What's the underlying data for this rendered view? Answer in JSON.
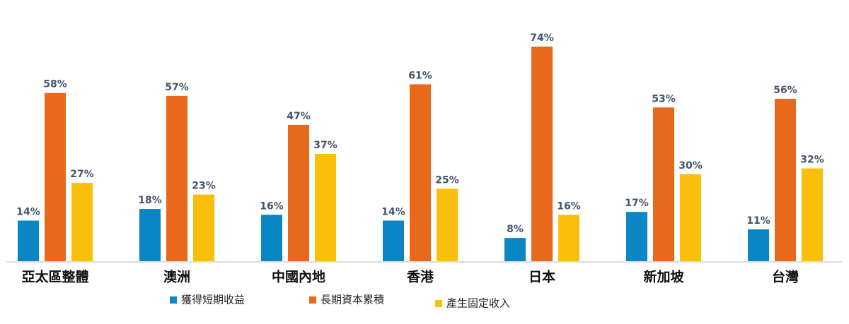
{
  "chart_data": {
    "type": "bar",
    "categories": [
      "亞太區整體",
      "澳洲",
      "中國內地",
      "香港",
      "日本",
      "新加坡",
      "台灣"
    ],
    "series": [
      {
        "name": "獲得短期收益",
        "color": "#0a86c4",
        "values": [
          14,
          18,
          16,
          14,
          8,
          17,
          11
        ],
        "value_labels": [
          "14%",
          "18%",
          "16%",
          "14%",
          "8%",
          "17%",
          "11%"
        ]
      },
      {
        "name": "長期資本累積",
        "color": "#e8681c",
        "values": [
          58,
          57,
          47,
          61,
          74,
          53,
          56
        ],
        "value_labels": [
          "58%",
          "57%",
          "47%",
          "61%",
          "74%",
          "53%",
          "56%"
        ]
      },
      {
        "name": "產生固定收入",
        "color": "#fbbf0b",
        "values": [
          27,
          23,
          37,
          25,
          16,
          30,
          32
        ],
        "value_labels": [
          "27%",
          "23%",
          "37%",
          "25%",
          "16%",
          "30%",
          "32%"
        ]
      }
    ]
  }
}
